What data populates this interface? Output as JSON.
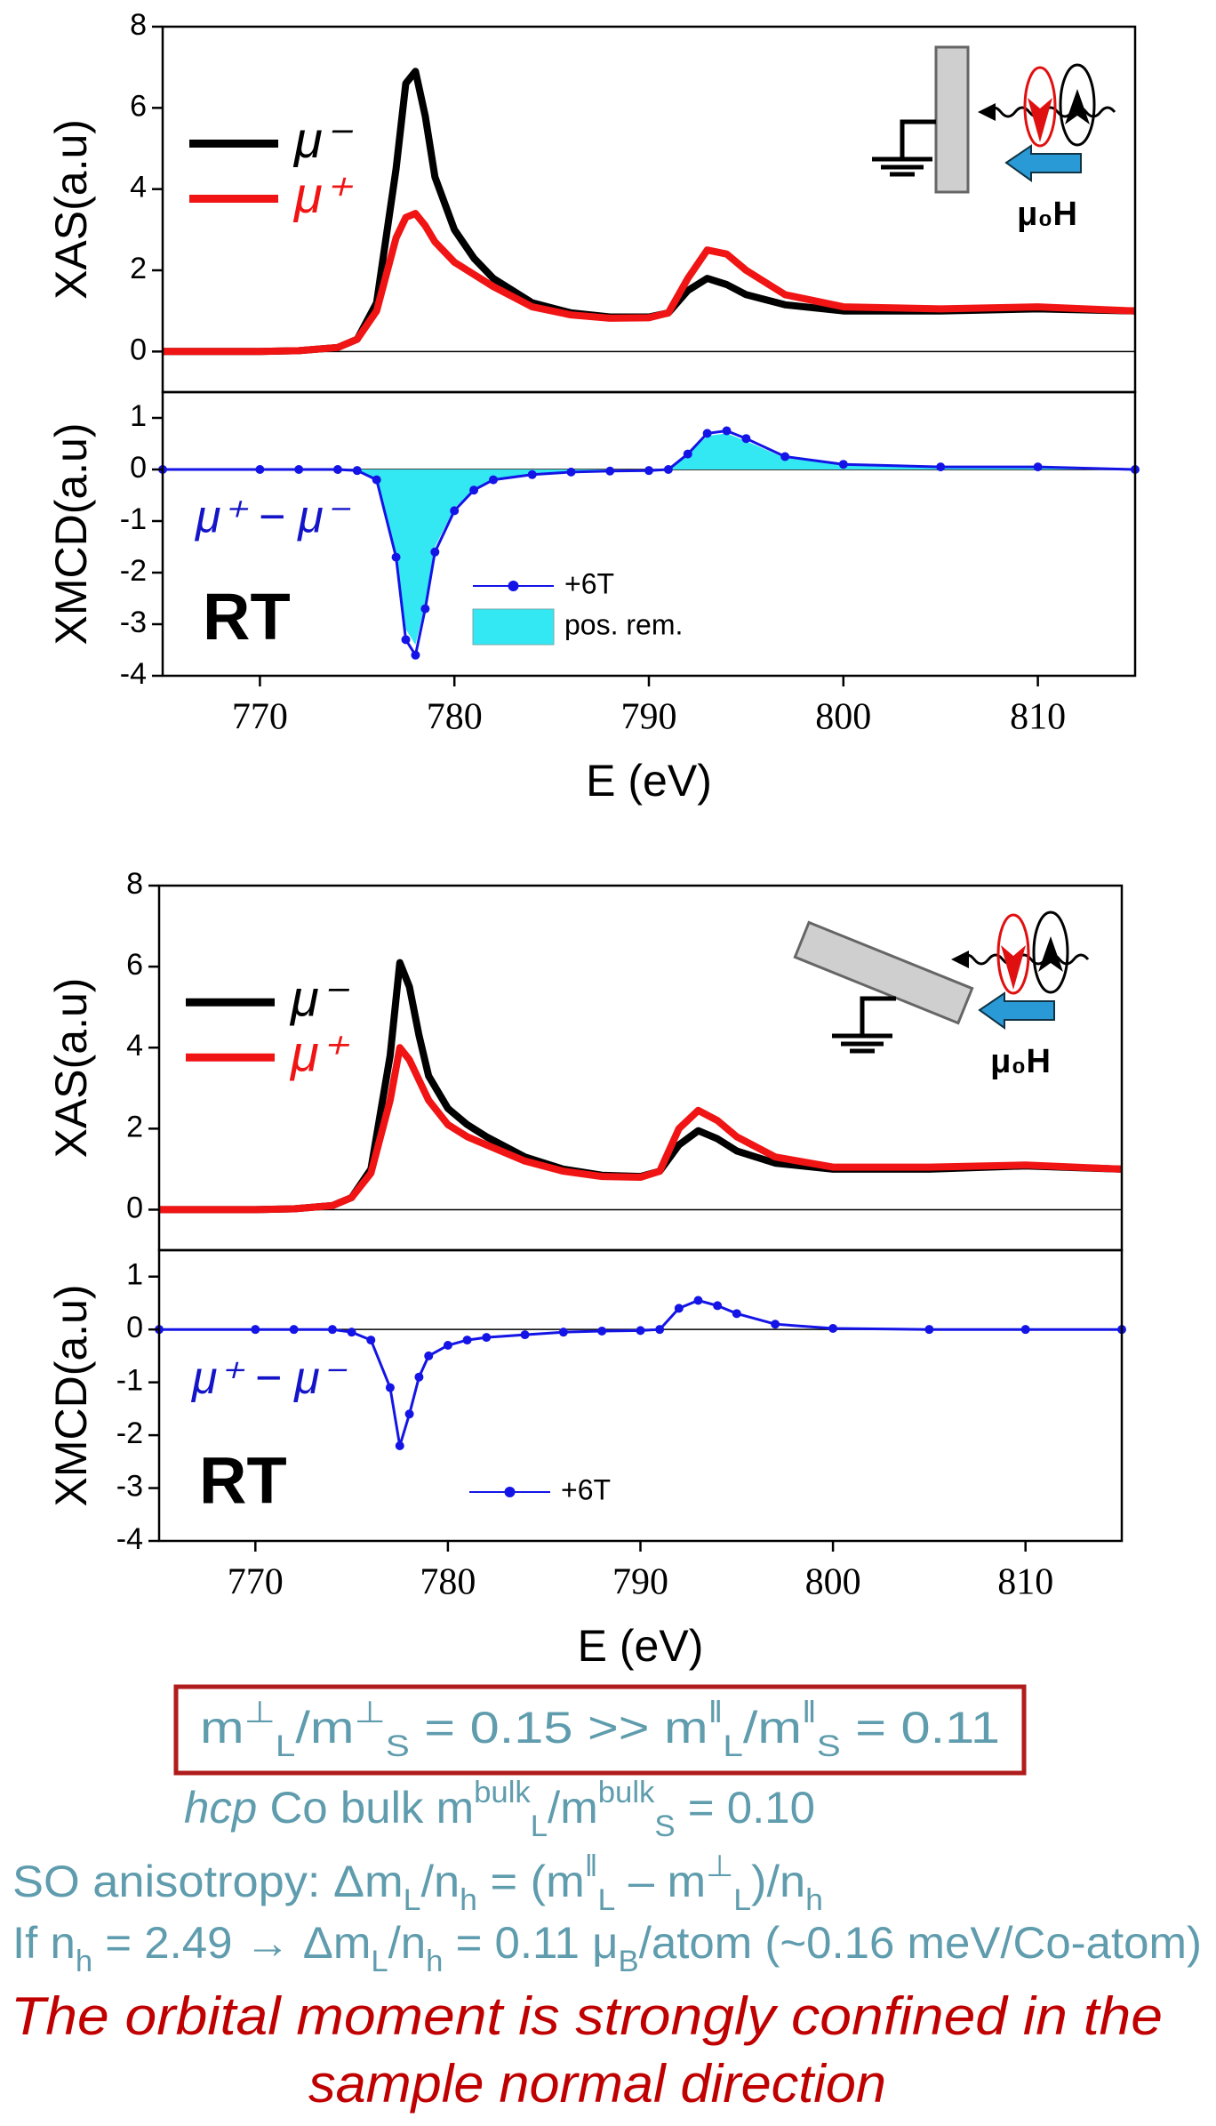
{
  "chart_data": [
    {
      "type": "line",
      "y_label": "XAS(a.u)",
      "xlim": [
        765,
        815
      ],
      "ylim": [
        -1,
        8
      ],
      "yticks": [
        0,
        2,
        4,
        6,
        8
      ],
      "legend": "upper left",
      "inset_label": "μ₀H",
      "x": [
        765,
        770,
        772,
        774,
        775,
        776,
        777,
        777.5,
        778,
        778.5,
        779,
        780,
        781,
        782,
        784,
        786,
        788,
        790,
        791,
        792,
        793,
        794,
        795,
        797,
        800,
        805,
        810,
        815
      ],
      "series": [
        {
          "name": "μ⁻",
          "color": "#000000",
          "style": "line",
          "values": [
            0,
            0,
            0.02,
            0.1,
            0.3,
            1.2,
            4.5,
            6.6,
            6.9,
            5.8,
            4.3,
            3.0,
            2.3,
            1.8,
            1.2,
            0.95,
            0.85,
            0.85,
            0.95,
            1.5,
            1.8,
            1.65,
            1.4,
            1.15,
            1.0,
            1.0,
            1.05,
            1.0
          ]
        },
        {
          "name": "μ⁺",
          "color": "#f01414",
          "style": "line",
          "values": [
            0,
            0,
            0.02,
            0.1,
            0.3,
            1.0,
            2.8,
            3.3,
            3.4,
            3.1,
            2.7,
            2.2,
            1.9,
            1.6,
            1.1,
            0.9,
            0.82,
            0.83,
            0.95,
            1.8,
            2.5,
            2.4,
            2.0,
            1.4,
            1.1,
            1.05,
            1.1,
            1.0
          ]
        }
      ]
    },
    {
      "type": "line",
      "y_label": "XMCD(a.u)",
      "x_label": "E (eV)",
      "xlim": [
        765,
        815
      ],
      "ylim": [
        -4,
        1.5
      ],
      "yticks": [
        -4,
        -3,
        -2,
        -1,
        0,
        1
      ],
      "xticks": [
        770,
        780,
        790,
        800,
        810
      ],
      "legend": "lower center",
      "annotations": [
        "μ⁺ − μ⁻",
        "RT"
      ],
      "x": [
        765,
        770,
        772,
        774,
        775,
        776,
        777,
        777.5,
        778,
        778.5,
        779,
        780,
        781,
        782,
        784,
        786,
        788,
        790,
        791,
        792,
        793,
        794,
        795,
        797,
        800,
        805,
        810,
        815
      ],
      "series": [
        {
          "name": "+6T",
          "color": "#1414e6",
          "style": "dots",
          "values": [
            0,
            0,
            0,
            0,
            -0.02,
            -0.2,
            -1.7,
            -3.3,
            -3.6,
            -2.7,
            -1.6,
            -0.8,
            -0.4,
            -0.2,
            -0.1,
            -0.05,
            -0.03,
            -0.02,
            0,
            0.3,
            0.7,
            0.75,
            0.6,
            0.25,
            0.1,
            0.05,
            0.05,
            0
          ]
        },
        {
          "name": "pos. rem.",
          "color": "#33e8f2",
          "style": "area",
          "values": [
            0,
            0,
            0,
            0,
            -0.02,
            -0.2,
            -1.6,
            -3.1,
            -3.4,
            -2.6,
            -1.5,
            -0.75,
            -0.38,
            -0.2,
            -0.1,
            -0.05,
            -0.03,
            -0.02,
            0,
            0.28,
            0.65,
            0.7,
            0.55,
            0.22,
            0.1,
            0.05,
            0.05,
            0
          ]
        }
      ]
    },
    {
      "type": "line",
      "y_label": "XAS(a.u)",
      "xlim": [
        765,
        815
      ],
      "ylim": [
        -1,
        8
      ],
      "yticks": [
        0,
        2,
        4,
        6,
        8
      ],
      "legend": "upper left",
      "inset_label": "μ₀H",
      "x": [
        765,
        770,
        772,
        774,
        775,
        776,
        777,
        777.5,
        778,
        778.5,
        779,
        780,
        781,
        782,
        784,
        786,
        788,
        790,
        791,
        792,
        793,
        794,
        795,
        797,
        800,
        805,
        810,
        815
      ],
      "series": [
        {
          "name": "μ⁻",
          "color": "#000000",
          "style": "line",
          "values": [
            0,
            0,
            0.02,
            0.1,
            0.3,
            1.0,
            3.8,
            6.1,
            5.5,
            4.3,
            3.3,
            2.5,
            2.1,
            1.8,
            1.3,
            1.0,
            0.85,
            0.82,
            0.95,
            1.6,
            1.95,
            1.75,
            1.45,
            1.15,
            1.0,
            1.0,
            1.08,
            1.0
          ]
        },
        {
          "name": "μ⁺",
          "color": "#f01414",
          "style": "line",
          "values": [
            0,
            0,
            0.02,
            0.1,
            0.3,
            0.9,
            2.7,
            4.0,
            3.7,
            3.2,
            2.7,
            2.1,
            1.8,
            1.6,
            1.2,
            0.95,
            0.82,
            0.8,
            0.95,
            2.0,
            2.45,
            2.2,
            1.8,
            1.3,
            1.05,
            1.05,
            1.1,
            1.0
          ]
        }
      ]
    },
    {
      "type": "line",
      "y_label": "XMCD(a.u)",
      "x_label": "E (eV)",
      "xlim": [
        765,
        815
      ],
      "ylim": [
        -4,
        1.5
      ],
      "yticks": [
        -4,
        -3,
        -2,
        -1,
        0,
        1
      ],
      "xticks": [
        770,
        780,
        790,
        800,
        810
      ],
      "legend": "lower center",
      "annotations": [
        "μ⁺ − μ⁻",
        "RT"
      ],
      "x": [
        765,
        770,
        772,
        774,
        775,
        776,
        777,
        777.5,
        778,
        778.5,
        779,
        780,
        781,
        782,
        784,
        786,
        788,
        790,
        791,
        792,
        793,
        794,
        795,
        797,
        800,
        805,
        810,
        815
      ],
      "series": [
        {
          "name": "+6T",
          "color": "#1414e6",
          "style": "dots",
          "values": [
            0,
            0,
            0,
            0,
            -0.05,
            -0.2,
            -1.1,
            -2.2,
            -1.6,
            -0.9,
            -0.5,
            -0.3,
            -0.2,
            -0.15,
            -0.1,
            -0.05,
            -0.03,
            -0.02,
            0,
            0.4,
            0.55,
            0.45,
            0.3,
            0.1,
            0.02,
            0,
            0,
            0
          ]
        }
      ]
    }
  ],
  "notes": {
    "box": [
      "m",
      {
        "sup": "⊥"
      },
      {
        "sub": "L"
      },
      "/m",
      {
        "sup": "⊥"
      },
      {
        "sub": "S"
      },
      " = 0.15 >> m",
      {
        "sup": "ǁ"
      },
      {
        "sub": "L"
      },
      "/m",
      {
        "sup": "ǁ"
      },
      {
        "sub": "S"
      },
      " = 0.11"
    ],
    "bulk": [
      {
        "i": "hcp"
      },
      " Co bulk m",
      {
        "sup": "bulk"
      },
      {
        "sub": "L"
      },
      "/m",
      {
        "sup": "bulk"
      },
      {
        "sub": "S"
      },
      " = 0.10"
    ],
    "anisotropy": [
      "SO anisotropy: Δm",
      {
        "sub": "L"
      },
      "/n",
      {
        "sub": "h"
      },
      " = (m",
      {
        "sup": "ǁ"
      },
      {
        "sub": "L"
      },
      " – m",
      {
        "sup": "⊥"
      },
      {
        "sub": "L"
      },
      ")/n",
      {
        "sub": "h"
      }
    ],
    "estimate": [
      "If n",
      {
        "sub": "h"
      },
      " = 2.49 → Δm",
      {
        "sub": "L"
      },
      "/n",
      {
        "sub": "h"
      },
      " = 0.11 μ",
      {
        "sub": "B"
      },
      "/atom (~0.16 meV/Co-atom)"
    ],
    "conclusion": [
      "The orbital moment is strongly confined in the",
      "sample normal direction"
    ]
  }
}
